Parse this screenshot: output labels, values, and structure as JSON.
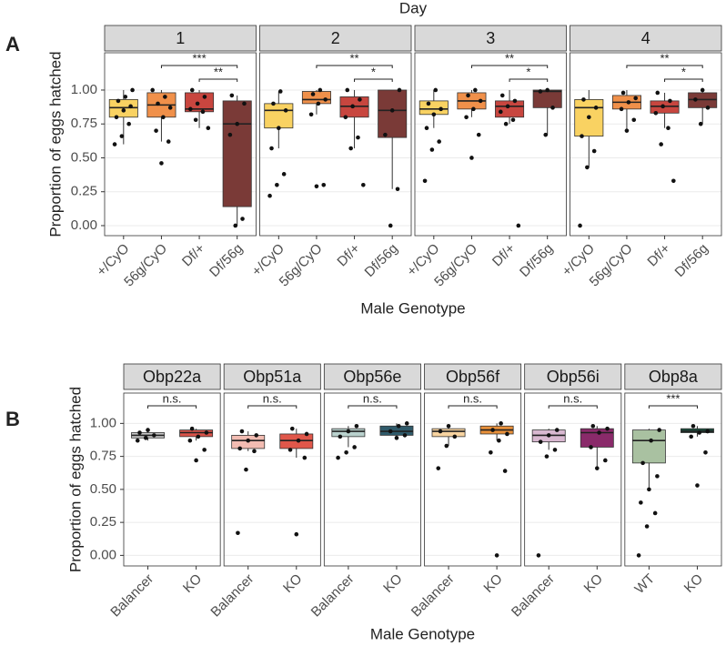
{
  "chart_data": [
    {
      "type": "box",
      "panel": "A",
      "facet_title": "Day",
      "ylabel": "Proportion of eggs hatched",
      "xlabel": "Male Genotype",
      "ylim": [
        -0.074,
        1.275
      ],
      "yticks": [
        {
          "value": 0,
          "label": "0.00"
        },
        {
          "value": 0.25,
          "label": "0.25"
        },
        {
          "value": 0.5,
          "label": "0.50"
        },
        {
          "value": 0.75,
          "label": "0.75"
        },
        {
          "value": 1,
          "label": "1.00"
        }
      ],
      "facets": [
        {
          "name": "1",
          "categories": [
            "+/CyO",
            "56g/CyO",
            "Df/+",
            "Df/56g"
          ],
          "boxes": [
            {
              "color": "#f9d262",
              "whisker_low": 0.6,
              "q1": 0.8,
              "median": 0.87,
              "q3": 0.93,
              "whisker_high": 1.0,
              "points": [
                0.6,
                0.66,
                0.75,
                0.8,
                0.85,
                0.88,
                0.92,
                0.95,
                1.0
              ]
            },
            {
              "color": "#f0904a",
              "whisker_low": 0.62,
              "q1": 0.8,
              "median": 0.89,
              "q3": 0.98,
              "whisker_high": 1.0,
              "points": [
                0.46,
                0.62,
                0.7,
                0.8,
                0.87,
                0.9,
                0.95,
                1.0
              ]
            },
            {
              "color": "#c8463f",
              "whisker_low": 0.72,
              "q1": 0.84,
              "median": 0.86,
              "q3": 0.98,
              "whisker_high": 1.0,
              "points": [
                0.72,
                0.78,
                0.84,
                0.86,
                0.9,
                0.95,
                1.0
              ]
            },
            {
              "color": "#7a3a37",
              "whisker_low": 0.0,
              "q1": 0.14,
              "median": 0.75,
              "q3": 0.92,
              "whisker_high": 0.96,
              "points": [
                0.0,
                0.05,
                0.67,
                0.75,
                0.9,
                0.96
              ]
            }
          ],
          "significance": [
            {
              "pair": [
                "56g/CyO",
                "Df/56g"
              ],
              "label": "***"
            },
            {
              "pair": [
                "Df/+",
                "Df/56g"
              ],
              "label": "**"
            }
          ]
        },
        {
          "name": "2",
          "categories": [
            "+/CyO",
            "56g/CyO",
            "Df/+",
            "Df/56g"
          ],
          "boxes": [
            {
              "color": "#f9d262",
              "whisker_low": 0.57,
              "q1": 0.72,
              "median": 0.85,
              "q3": 0.9,
              "whisker_high": 0.99,
              "points": [
                0.22,
                0.3,
                0.38,
                0.57,
                0.72,
                0.85,
                0.9,
                0.99
              ]
            },
            {
              "color": "#f0904a",
              "whisker_low": 0.82,
              "q1": 0.9,
              "median": 0.93,
              "q3": 0.99,
              "whisker_high": 1.0,
              "points": [
                0.29,
                0.3,
                0.82,
                0.9,
                0.93,
                0.97,
                1.0
              ]
            },
            {
              "color": "#c8463f",
              "whisker_low": 0.57,
              "q1": 0.8,
              "median": 0.88,
              "q3": 0.95,
              "whisker_high": 1.0,
              "points": [
                0.3,
                0.57,
                0.65,
                0.8,
                0.88,
                0.93,
                1.0
              ]
            },
            {
              "color": "#7a3a37",
              "whisker_low": 0.27,
              "q1": 0.65,
              "median": 0.85,
              "q3": 1.0,
              "whisker_high": 1.0,
              "points": [
                0.0,
                0.27,
                0.67,
                0.85,
                1.0
              ]
            }
          ],
          "significance": [
            {
              "pair": [
                "56g/CyO",
                "Df/56g"
              ],
              "label": "**"
            },
            {
              "pair": [
                "Df/+",
                "Df/56g"
              ],
              "label": "*"
            }
          ]
        },
        {
          "name": "3",
          "categories": [
            "+/CyO",
            "56g/CyO",
            "Df/+",
            "Df/56g"
          ],
          "boxes": [
            {
              "color": "#f9d262",
              "whisker_low": 0.72,
              "q1": 0.82,
              "median": 0.86,
              "q3": 0.92,
              "whisker_high": 1.0,
              "points": [
                0.33,
                0.56,
                0.62,
                0.72,
                0.82,
                0.86,
                0.9,
                1.0
              ]
            },
            {
              "color": "#f0904a",
              "whisker_low": 0.8,
              "q1": 0.86,
              "median": 0.92,
              "q3": 0.98,
              "whisker_high": 1.0,
              "points": [
                0.5,
                0.67,
                0.8,
                0.86,
                0.92,
                0.96,
                1.0
              ]
            },
            {
              "color": "#c8463f",
              "whisker_low": 0.75,
              "q1": 0.8,
              "median": 0.88,
              "q3": 0.92,
              "whisker_high": 1.0,
              "points": [
                0.0,
                0.75,
                0.78,
                0.84,
                0.88,
                0.92,
                0.96
              ]
            },
            {
              "color": "#7a3a37",
              "whisker_low": 0.67,
              "q1": 0.87,
              "median": 0.99,
              "q3": 1.0,
              "whisker_high": 1.0,
              "points": [
                0.67,
                0.87,
                0.99,
                1.0
              ]
            }
          ],
          "significance": [
            {
              "pair": [
                "56g/CyO",
                "Df/56g"
              ],
              "label": "**"
            },
            {
              "pair": [
                "Df/+",
                "Df/56g"
              ],
              "label": "*"
            }
          ]
        },
        {
          "name": "4",
          "categories": [
            "+/CyO",
            "56g/CyO",
            "Df/+",
            "Df/56g"
          ],
          "boxes": [
            {
              "color": "#f9d262",
              "whisker_low": 0.43,
              "q1": 0.66,
              "median": 0.87,
              "q3": 0.93,
              "whisker_high": 1.0,
              "points": [
                0.0,
                0.43,
                0.55,
                0.66,
                0.8,
                0.87,
                0.93
              ]
            },
            {
              "color": "#f0904a",
              "whisker_low": 0.7,
              "q1": 0.86,
              "median": 0.91,
              "q3": 0.96,
              "whisker_high": 1.0,
              "points": [
                0.7,
                0.78,
                0.86,
                0.91,
                0.94,
                0.98
              ]
            },
            {
              "color": "#c8463f",
              "whisker_low": 0.72,
              "q1": 0.83,
              "median": 0.88,
              "q3": 0.92,
              "whisker_high": 0.98,
              "points": [
                0.33,
                0.6,
                0.72,
                0.83,
                0.88,
                0.92,
                0.98
              ]
            },
            {
              "color": "#7a3a37",
              "whisker_low": 0.75,
              "q1": 0.87,
              "median": 0.93,
              "q3": 0.98,
              "whisker_high": 1.0,
              "points": [
                0.75,
                0.87,
                0.93,
                1.0
              ]
            }
          ],
          "significance": [
            {
              "pair": [
                "56g/CyO",
                "Df/56g"
              ],
              "label": "**"
            },
            {
              "pair": [
                "Df/+",
                "Df/56g"
              ],
              "label": "*"
            }
          ]
        }
      ]
    },
    {
      "type": "box",
      "panel": "B",
      "ylabel": "Proportion of eggs hatched",
      "xlabel": "Male Genotype",
      "ylim": [
        -0.08,
        1.23
      ],
      "yticks": [
        {
          "value": 0,
          "label": "0.00"
        },
        {
          "value": 0.25,
          "label": "0.25"
        },
        {
          "value": 0.5,
          "label": "0.50"
        },
        {
          "value": 0.75,
          "label": "0.75"
        },
        {
          "value": 1,
          "label": "1.00"
        }
      ],
      "facets": [
        {
          "name": "Obp22a",
          "categories": [
            "Balancer",
            "KO"
          ],
          "boxes": [
            {
              "color": "#c9c9c9",
              "whisker_low": 0.87,
              "q1": 0.89,
              "median": 0.91,
              "q3": 0.93,
              "whisker_high": 0.95,
              "points": [
                0.87,
                0.89,
                0.91,
                0.93,
                0.95
              ]
            },
            {
              "color": "#d9534a",
              "whisker_low": 0.87,
              "q1": 0.9,
              "median": 0.93,
              "q3": 0.95,
              "whisker_high": 0.96,
              "points": [
                0.72,
                0.8,
                0.87,
                0.9,
                0.93,
                0.96
              ]
            }
          ],
          "significance": [
            {
              "pair": [
                "Balancer",
                "KO"
              ],
              "label": "n.s."
            }
          ]
        },
        {
          "name": "Obp51a",
          "categories": [
            "Balancer",
            "KO"
          ],
          "boxes": [
            {
              "color": "#f2bcb2",
              "whisker_low": 0.79,
              "q1": 0.81,
              "median": 0.87,
              "q3": 0.91,
              "whisker_high": 0.94,
              "points": [
                0.17,
                0.65,
                0.79,
                0.81,
                0.87,
                0.91,
                0.94
              ]
            },
            {
              "color": "#e0574a",
              "whisker_low": 0.74,
              "q1": 0.81,
              "median": 0.87,
              "q3": 0.92,
              "whisker_high": 0.96,
              "points": [
                0.16,
                0.74,
                0.8,
                0.87,
                0.92,
                0.96
              ]
            }
          ],
          "significance": [
            {
              "pair": [
                "Balancer",
                "KO"
              ],
              "label": "n.s."
            }
          ]
        },
        {
          "name": "Obp56e",
          "categories": [
            "Balancer",
            "KO"
          ],
          "boxes": [
            {
              "color": "#b9d1cd",
              "whisker_low": 0.82,
              "q1": 0.9,
              "median": 0.94,
              "q3": 0.96,
              "whisker_high": 0.98,
              "points": [
                0.74,
                0.78,
                0.82,
                0.9,
                0.94,
                0.98
              ]
            },
            {
              "color": "#2f5a6a",
              "whisker_low": 0.89,
              "q1": 0.91,
              "median": 0.94,
              "q3": 0.98,
              "whisker_high": 1.0,
              "points": [
                0.89,
                0.91,
                0.94,
                0.98,
                1.0
              ]
            }
          ],
          "significance": [
            {
              "pair": [
                "Balancer",
                "KO"
              ],
              "label": "n.s."
            }
          ]
        },
        {
          "name": "Obp56f",
          "categories": [
            "Balancer",
            "KO"
          ],
          "boxes": [
            {
              "color": "#f7d3a0",
              "whisker_low": 0.83,
              "q1": 0.9,
              "median": 0.94,
              "q3": 0.96,
              "whisker_high": 0.98,
              "points": [
                0.66,
                0.83,
                0.9,
                0.94,
                0.98
              ]
            },
            {
              "color": "#e8903a",
              "whisker_low": 0.87,
              "q1": 0.92,
              "median": 0.95,
              "q3": 0.98,
              "whisker_high": 1.0,
              "points": [
                0.0,
                0.64,
                0.78,
                0.87,
                0.92,
                0.95,
                1.0
              ]
            }
          ],
          "significance": [
            {
              "pair": [
                "Balancer",
                "KO"
              ],
              "label": "n.s."
            }
          ]
        },
        {
          "name": "Obp56i",
          "categories": [
            "Balancer",
            "KO"
          ],
          "boxes": [
            {
              "color": "#d9b8d1",
              "whisker_low": 0.8,
              "q1": 0.86,
              "median": 0.91,
              "q3": 0.95,
              "whisker_high": 0.96,
              "points": [
                0.0,
                0.75,
                0.8,
                0.86,
                0.91,
                0.95
              ]
            },
            {
              "color": "#8a2a6a",
              "whisker_low": 0.66,
              "q1": 0.82,
              "median": 0.93,
              "q3": 0.96,
              "whisker_high": 0.98,
              "points": [
                0.66,
                0.72,
                0.82,
                0.93,
                0.96,
                0.98
              ]
            }
          ],
          "significance": [
            {
              "pair": [
                "Balancer",
                "KO"
              ],
              "label": "n.s."
            }
          ]
        },
        {
          "name": "Obp8a",
          "categories": [
            "WT",
            "KO"
          ],
          "boxes": [
            {
              "color": "#a9c1a1",
              "whisker_low": 0.5,
              "q1": 0.7,
              "median": 0.87,
              "q3": 0.95,
              "whisker_high": 0.96,
              "points": [
                0.0,
                0.22,
                0.32,
                0.4,
                0.5,
                0.6,
                0.7,
                0.87,
                0.95
              ]
            },
            {
              "color": "#1a4a3a",
              "whisker_low": 0.9,
              "q1": 0.93,
              "median": 0.94,
              "q3": 0.96,
              "whisker_high": 0.98,
              "points": [
                0.53,
                0.78,
                0.9,
                0.93,
                0.94,
                0.98
              ]
            }
          ],
          "significance": [
            {
              "pair": [
                "WT",
                "KO"
              ],
              "label": "***"
            }
          ]
        }
      ]
    }
  ]
}
